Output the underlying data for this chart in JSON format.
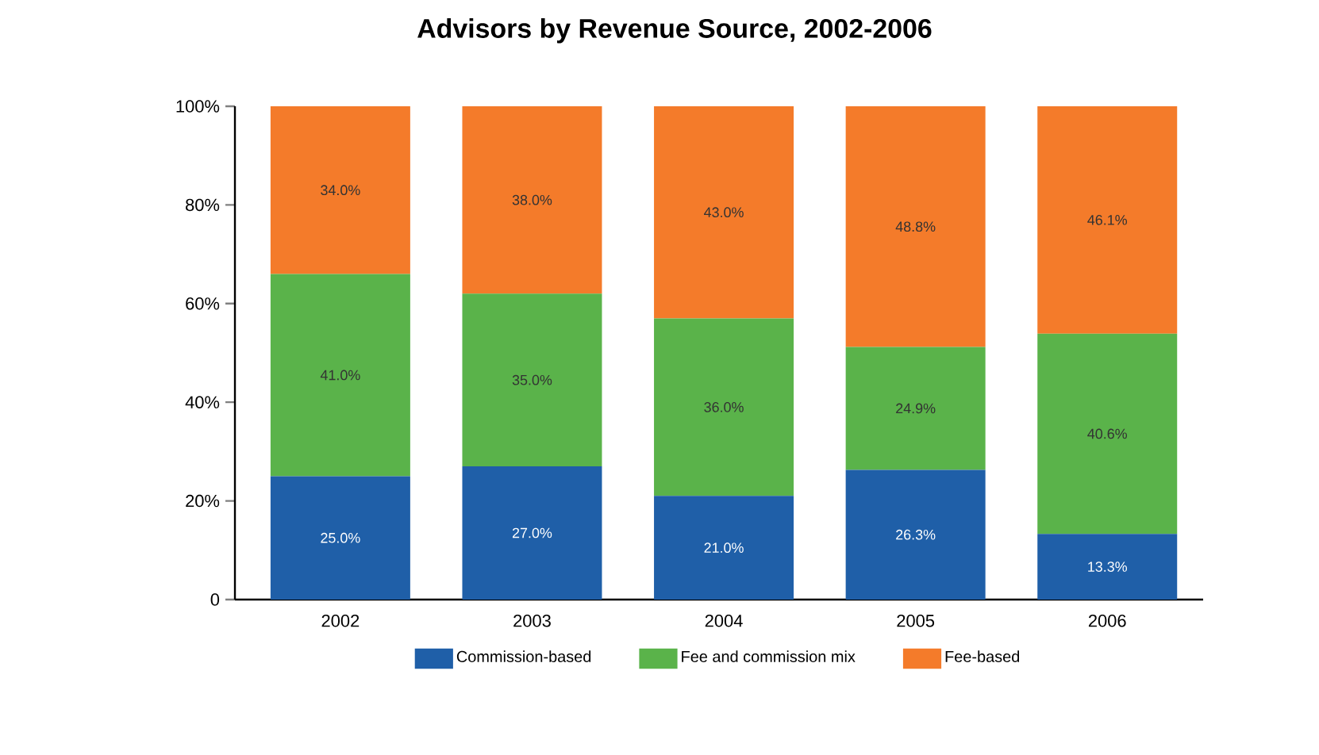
{
  "chart_data": {
    "type": "bar",
    "title": "Advisors by Revenue Source, 2002-2006",
    "stacked": true,
    "categories": [
      "2002",
      "2003",
      "2004",
      "2005",
      "2006"
    ],
    "series": [
      {
        "name": "Commission-based",
        "color": "#1f5fa8",
        "values": [
          25.0,
          27.0,
          21.0,
          26.3,
          13.3
        ],
        "value_labels": [
          "25.0%",
          "27.0%",
          "21.0%",
          "26.3%",
          "13.3%"
        ]
      },
      {
        "name": "Fee and commission mix",
        "color": "#5ab34a",
        "values": [
          41.0,
          35.0,
          36.0,
          24.9,
          40.6
        ],
        "value_labels": [
          "41.0%",
          "35.0%",
          "36.0%",
          "24.9%",
          "40.6%"
        ]
      },
      {
        "name": "Fee-based",
        "color": "#f47b2a",
        "values": [
          34.0,
          38.0,
          43.0,
          48.8,
          46.1
        ],
        "value_labels": [
          "34.0%",
          "38.0%",
          "43.0%",
          "48.8%",
          "46.1%"
        ]
      }
    ],
    "ylim": [
      0,
      100
    ],
    "yticks": [
      {
        "value": 0,
        "label": "0"
      },
      {
        "value": 20,
        "label": "20%"
      },
      {
        "value": 40,
        "label": "40%"
      },
      {
        "value": 60,
        "label": "60%"
      },
      {
        "value": 80,
        "label": "80%"
      },
      {
        "value": 100,
        "label": "100%"
      }
    ],
    "legend": "bottom",
    "grid": false
  }
}
